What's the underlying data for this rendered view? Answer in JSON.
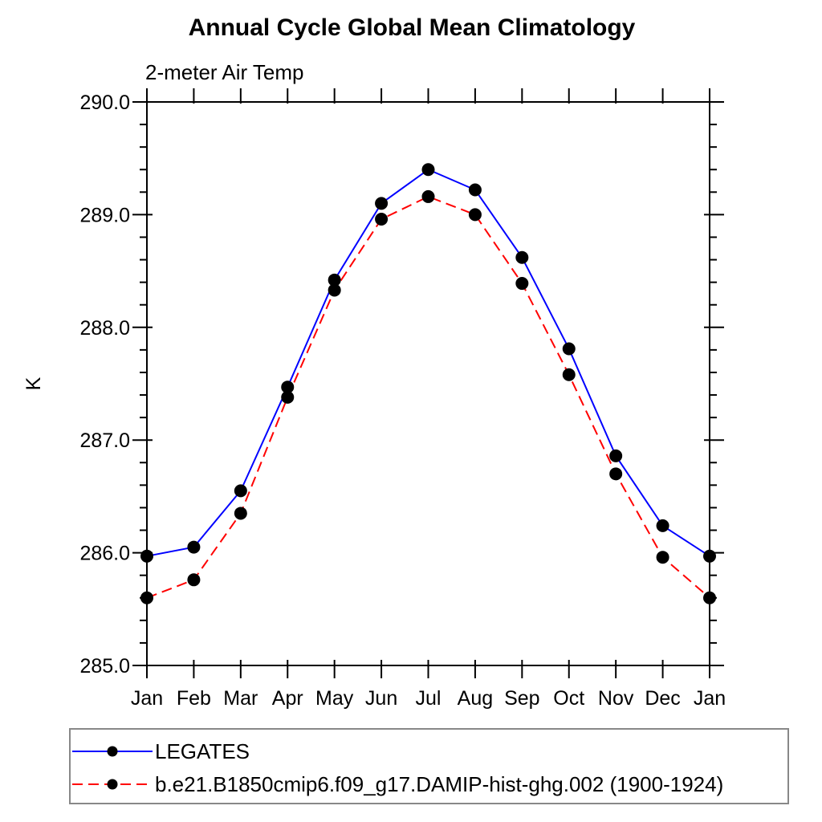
{
  "page": {
    "background": "#ffffff",
    "axis_color": "#000000",
    "text_color": "#000000"
  },
  "chart_data": {
    "type": "line",
    "title": "Annual Cycle Global Mean Climatology",
    "subtitle": "2-meter Air Temp",
    "ylabel": "K",
    "xlabel": "",
    "grid": "off",
    "x_categories": [
      "Jan",
      "Feb",
      "Mar",
      "Apr",
      "May",
      "Jun",
      "Jul",
      "Aug",
      "Sep",
      "Oct",
      "Nov",
      "Dec",
      "Jan"
    ],
    "ylim": [
      285.0,
      290.0
    ],
    "y_major_ticks": [
      285.0,
      286.0,
      287.0,
      288.0,
      289.0,
      290.0
    ],
    "y_tick_labels": [
      "285.0",
      "286.0",
      "287.0",
      "288.0",
      "289.0",
      "290.0"
    ],
    "y_minor_step": 0.2,
    "marker": {
      "shape": "filled-circle",
      "color": "#000000"
    },
    "series": [
      {
        "name": "LEGATES",
        "color": "#0000ff",
        "line_style": "solid",
        "values": [
          285.97,
          286.05,
          286.55,
          287.47,
          288.42,
          289.1,
          289.4,
          289.22,
          288.62,
          287.81,
          286.86,
          286.24,
          285.97
        ]
      },
      {
        "name": "b.e21.B1850cmip6.f09_g17.DAMIP-hist-ghg.002 (1900-1924)",
        "color": "#ff0000",
        "line_style": "dashed",
        "values": [
          285.6,
          285.76,
          286.35,
          287.38,
          288.33,
          288.96,
          289.16,
          289.0,
          288.39,
          287.58,
          286.7,
          285.96,
          285.6
        ]
      }
    ],
    "legend": {
      "position": "bottom-left-box",
      "border_color": "#888888"
    }
  }
}
